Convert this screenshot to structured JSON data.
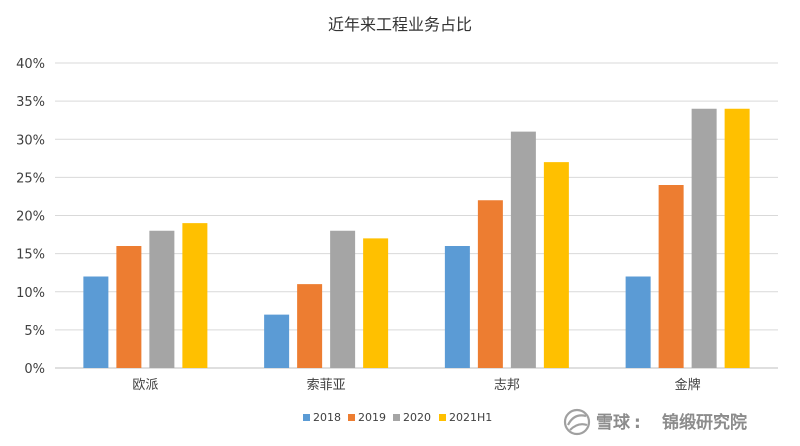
{
  "chart_data": {
    "type": "bar",
    "title": "近年来工程业务占比",
    "categories": [
      "欧派",
      "索菲亚",
      "志邦",
      "金牌"
    ],
    "series": [
      {
        "name": "2018",
        "color": "#5b9bd5",
        "values": [
          12,
          7,
          16,
          12
        ]
      },
      {
        "name": "2019",
        "color": "#ed7d31",
        "values": [
          16,
          11,
          22,
          24
        ]
      },
      {
        "name": "2020",
        "color": "#a5a5a5",
        "values": [
          18,
          18,
          31,
          34
        ]
      },
      {
        "name": "2021H1",
        "color": "#ffc000",
        "values": [
          19,
          17,
          27,
          34
        ]
      }
    ],
    "yticks": [
      "0%",
      "5%",
      "10%",
      "15%",
      "20%",
      "25%",
      "30%",
      "35%",
      "40%"
    ],
    "ylim": [
      0,
      40
    ],
    "grid": true,
    "legend_position": "bottom"
  },
  "watermark": {
    "icon": "snowball-icon",
    "brand": "雪球",
    "separator": ":",
    "author": "锦缎研究院"
  }
}
